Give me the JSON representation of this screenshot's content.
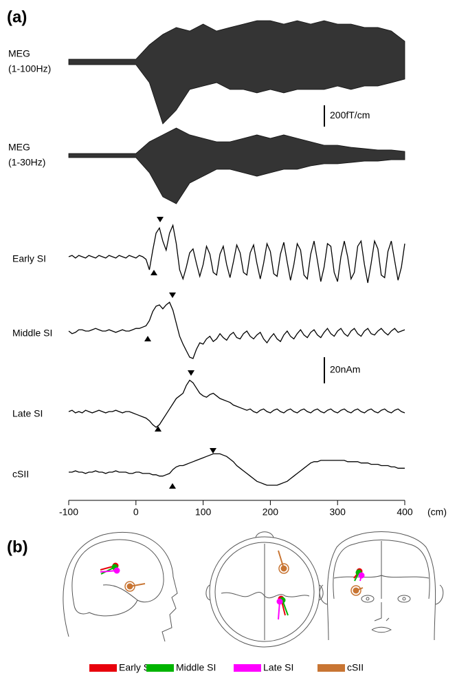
{
  "figure": {
    "panel_a_label": "(a)",
    "panel_b_label": "(b)"
  },
  "chart_data": {
    "type": "line",
    "x_label": "(cm)",
    "xlim": [
      -100,
      400
    ],
    "xticks": [
      -100,
      0,
      100,
      200,
      300,
      400
    ],
    "meg_x": [
      -100,
      -80,
      -60,
      -40,
      -20,
      0,
      20,
      40,
      60,
      80,
      100,
      120,
      140,
      160,
      180,
      200,
      220,
      240,
      260,
      280,
      300,
      320,
      340,
      360,
      380,
      400
    ],
    "meg": [
      {
        "label": [
          "MEG",
          "(1-100Hz)"
        ],
        "color": "#111111",
        "upper": [
          26,
          26,
          26,
          26,
          26,
          26,
          161,
          258,
          323,
          290,
          355,
          290,
          323,
          355,
          387,
          387,
          355,
          387,
          355,
          387,
          355,
          355,
          323,
          323,
          290,
          194
        ],
        "lower": [
          -26,
          -26,
          -26,
          -26,
          -26,
          -26,
          -194,
          -581,
          -452,
          -258,
          -226,
          -194,
          -258,
          -258,
          -290,
          -258,
          -290,
          -258,
          -258,
          -258,
          -226,
          -258,
          -226,
          -226,
          -194,
          -161
        ]
      },
      {
        "label": [
          "MEG",
          "(1-30Hz)"
        ],
        "color": "#111111",
        "upper": [
          19,
          19,
          19,
          19,
          19,
          19,
          129,
          194,
          258,
          194,
          161,
          129,
          129,
          161,
          194,
          161,
          194,
          161,
          129,
          97,
          97,
          77,
          65,
          52,
          52,
          39
        ],
        "lower": [
          -19,
          -19,
          -19,
          -19,
          -19,
          -19,
          -161,
          -387,
          -452,
          -258,
          -194,
          -129,
          -129,
          -161,
          -194,
          -161,
          -129,
          -129,
          -97,
          -77,
          -77,
          -65,
          -52,
          -52,
          -39,
          -39
        ]
      }
    ],
    "meg_scale_bar": {
      "label": "200fT/cm",
      "value": 200
    },
    "x": [
      -100,
      -95,
      -90,
      -85,
      -80,
      -75,
      -70,
      -65,
      -60,
      -55,
      -50,
      -45,
      -40,
      -35,
      -30,
      -25,
      -20,
      -15,
      -10,
      -5,
      0,
      5,
      10,
      15,
      20,
      25,
      30,
      35,
      40,
      45,
      50,
      55,
      60,
      65,
      70,
      75,
      80,
      85,
      90,
      95,
      100,
      105,
      110,
      115,
      120,
      125,
      130,
      135,
      140,
      145,
      150,
      155,
      160,
      165,
      170,
      175,
      180,
      185,
      190,
      195,
      200,
      205,
      210,
      215,
      220,
      225,
      230,
      235,
      240,
      245,
      250,
      255,
      260,
      265,
      270,
      275,
      280,
      285,
      290,
      295,
      300,
      305,
      310,
      315,
      320,
      325,
      330,
      335,
      340,
      345,
      350,
      355,
      360,
      365,
      370,
      375,
      380,
      385,
      390,
      395,
      400
    ],
    "series": [
      {
        "name": "Early SI",
        "color": "#e8000b",
        "values": [
          0,
          1,
          -1,
          1,
          0,
          -1,
          1,
          0,
          -1,
          1,
          0,
          -1,
          1,
          0,
          -1,
          1,
          0,
          -1,
          1,
          0,
          -1,
          1,
          0,
          -2,
          -10,
          5,
          18,
          22,
          12,
          5,
          18,
          24,
          10,
          -10,
          -17,
          -8,
          3,
          6,
          -5,
          -15,
          -6,
          8,
          2,
          -12,
          -14,
          2,
          8,
          -6,
          -16,
          -4,
          9,
          3,
          -12,
          -14,
          3,
          9,
          -5,
          -17,
          -5,
          10,
          4,
          -13,
          -15,
          2,
          11,
          -4,
          -18,
          -6,
          10,
          5,
          -14,
          -17,
          2,
          12,
          -3,
          -19,
          -8,
          10,
          8,
          -12,
          -19,
          0,
          12,
          0,
          -17,
          -12,
          8,
          12,
          -6,
          -20,
          -5,
          12,
          6,
          -14,
          -16,
          4,
          12,
          -3,
          -18,
          -8,
          10
        ]
      },
      {
        "name": "Middle SI",
        "color": "#00b400",
        "values": [
          0,
          -2,
          -1,
          1,
          1,
          0,
          0,
          1,
          2,
          1,
          0,
          0,
          1,
          0,
          -1,
          0,
          1,
          0,
          0,
          1,
          2,
          2,
          3,
          4,
          8,
          15,
          19,
          20,
          17,
          20,
          22,
          16,
          6,
          -4,
          -10,
          -15,
          -20,
          -21,
          -14,
          -9,
          -10,
          -6,
          -4,
          -8,
          -6,
          -2,
          -5,
          -7,
          -3,
          -1,
          -5,
          -6,
          -2,
          0,
          -4,
          -6,
          -3,
          -1,
          -6,
          -9,
          -5,
          -2,
          -6,
          -8,
          -3,
          0,
          -4,
          -6,
          -2,
          1,
          -3,
          -5,
          -1,
          1,
          -3,
          -5,
          -1,
          2,
          -2,
          -4,
          0,
          2,
          -2,
          -4,
          0,
          2,
          -2,
          -4,
          0,
          2,
          -2,
          -3,
          0,
          2,
          -1,
          -3,
          0,
          2,
          -1,
          0,
          1
        ]
      },
      {
        "name": "Late SI",
        "color": "#ff00ff",
        "values": [
          0,
          1,
          -1,
          0,
          -1,
          1,
          0,
          -1,
          0,
          1,
          0,
          -1,
          0,
          0,
          1,
          0,
          -1,
          0,
          0,
          -1,
          -2,
          -3,
          -4,
          -5,
          -7,
          -10,
          -12,
          -10,
          -6,
          -2,
          2,
          6,
          10,
          12,
          14,
          20,
          24,
          22,
          18,
          14,
          12,
          11,
          13,
          14,
          12,
          10,
          9,
          8,
          7,
          5,
          4,
          3,
          2,
          1,
          2,
          0,
          -1,
          1,
          2,
          0,
          -1,
          1,
          2,
          0,
          -1,
          1,
          2,
          0,
          -1,
          1,
          2,
          0,
          -1,
          1,
          2,
          0,
          -1,
          1,
          2,
          0,
          -1,
          1,
          2,
          0,
          -1,
          1,
          2,
          0,
          -1,
          1,
          2,
          0,
          -1,
          1,
          2,
          0,
          -1,
          1,
          2,
          0,
          -1
        ]
      },
      {
        "name": "cSII",
        "color": "#c87533",
        "values": [
          0,
          0,
          1,
          0,
          0,
          -1,
          0,
          0,
          1,
          0,
          0,
          -1,
          0,
          0,
          1,
          0,
          0,
          0,
          -1,
          -1,
          0,
          0,
          -1,
          -1,
          -1,
          -2,
          -2,
          -3,
          -3,
          -2,
          -1,
          2,
          4,
          5,
          5,
          6,
          7,
          8,
          9,
          10,
          11,
          12,
          13,
          14,
          14,
          14,
          13,
          12,
          10,
          8,
          5,
          3,
          1,
          -1,
          -3,
          -5,
          -7,
          -8,
          -9,
          -10,
          -10,
          -10,
          -10,
          -9,
          -8,
          -7,
          -5,
          -3,
          -1,
          1,
          3,
          5,
          7,
          8,
          8,
          9,
          9,
          9,
          9,
          9,
          9,
          9,
          9,
          8,
          8,
          8,
          8,
          7,
          7,
          7,
          6,
          6,
          6,
          5,
          5,
          5,
          4,
          4,
          3,
          3,
          3
        ]
      }
    ],
    "scale_bar": {
      "label": "20nAm",
      "value": 20
    }
  }
}
